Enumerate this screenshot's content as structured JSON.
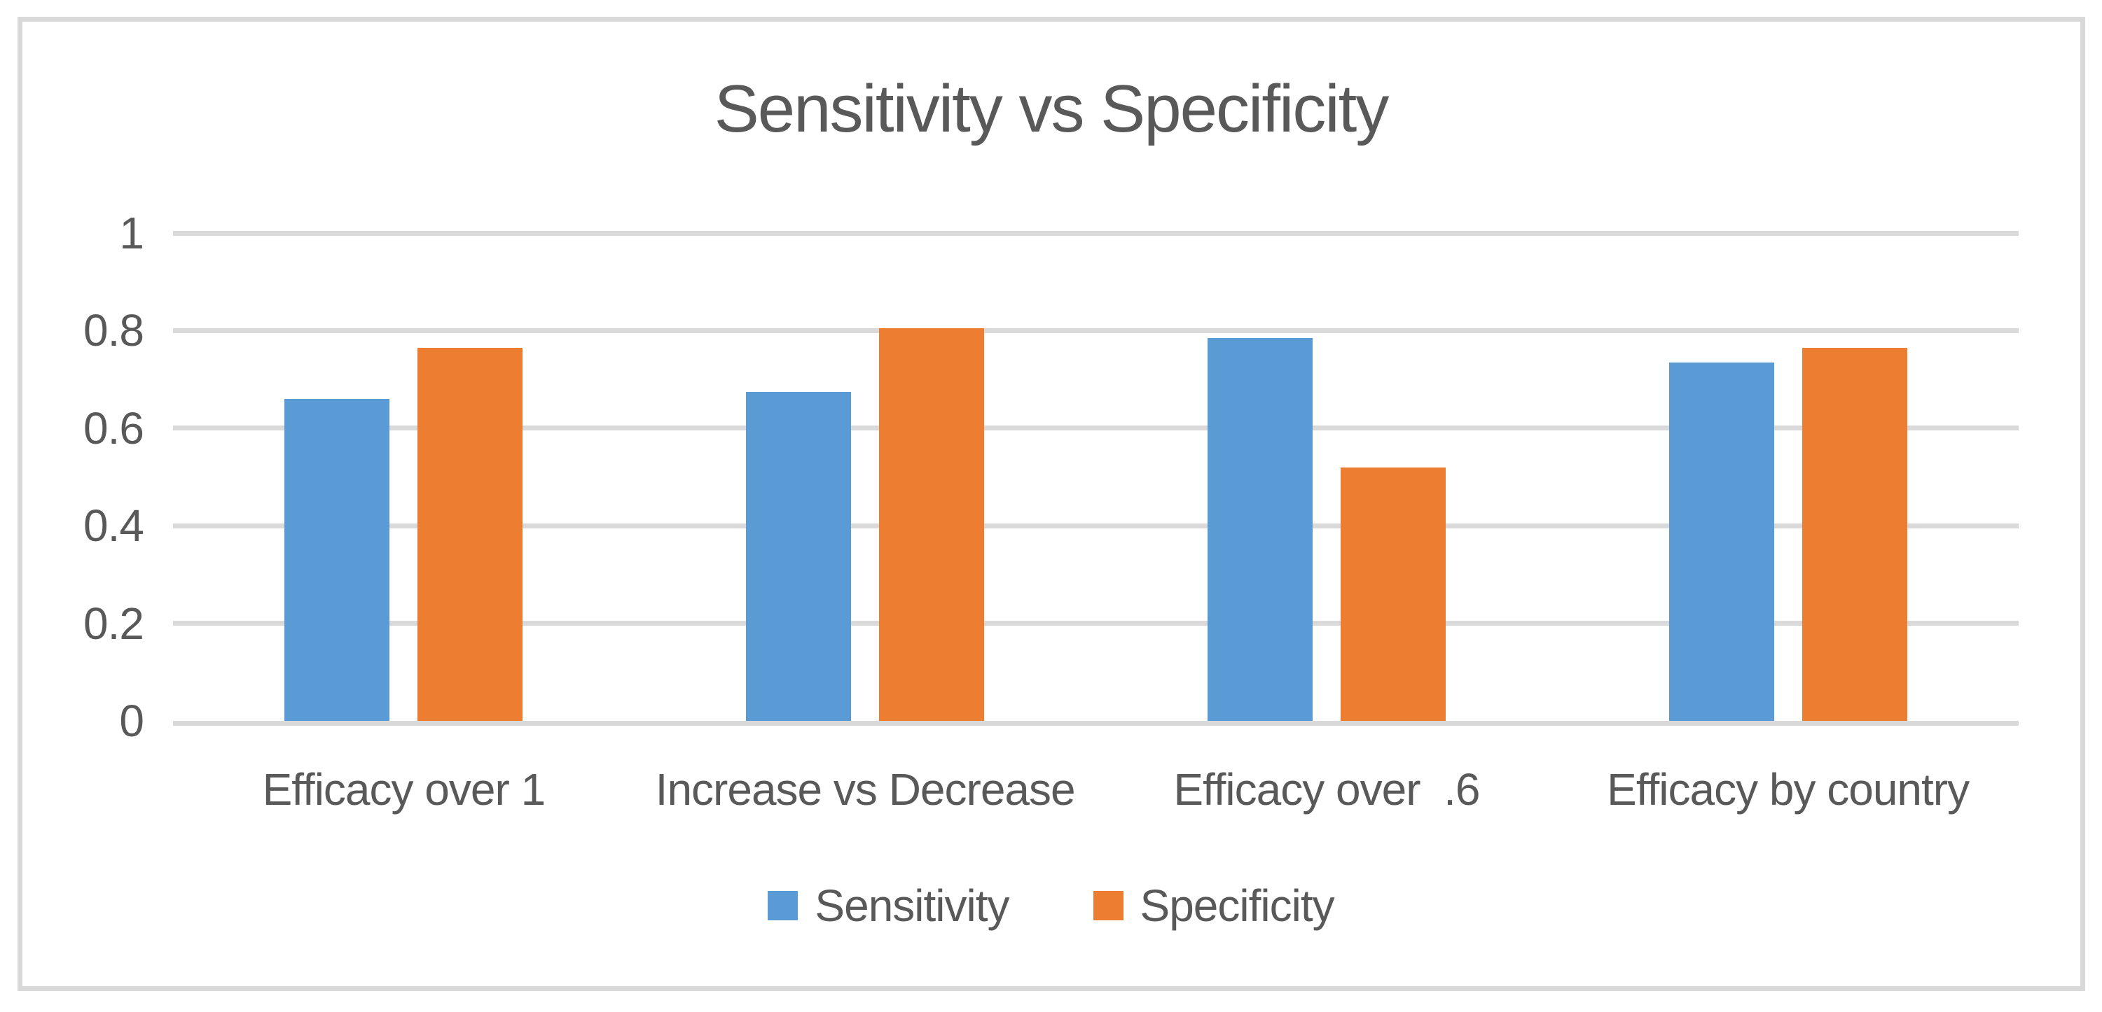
{
  "chart_data": {
    "type": "bar",
    "title": "Sensitivity vs Specificity",
    "categories": [
      "Efficacy over 1",
      "Increase vs Decrease",
      "Efficacy over  .6",
      "Efficacy by country"
    ],
    "series": [
      {
        "name": "Sensitivity",
        "color": "#5B9BD5",
        "values": [
          0.66,
          0.675,
          0.785,
          0.735
        ]
      },
      {
        "name": "Specificity",
        "color": "#ED7D31",
        "values": [
          0.765,
          0.805,
          0.52,
          0.765
        ]
      }
    ],
    "xlabel": "",
    "ylabel": "",
    "ylim": [
      0,
      1
    ],
    "yticks": [
      1,
      0.8,
      0.6,
      0.4,
      0.2,
      0
    ],
    "ytick_labels": [
      "1",
      "0.8",
      "0.6",
      "0.4",
      "0.2",
      "0"
    ],
    "grid": true,
    "legend_position": "bottom"
  },
  "colors": {
    "sensitivity_bar": "#5B9BD5",
    "specificity_bar": "#ED7D31",
    "text": "#595959",
    "gridline": "#D9D9D9",
    "frame_border": "#D9D9D9",
    "background": "#FFFFFF"
  }
}
